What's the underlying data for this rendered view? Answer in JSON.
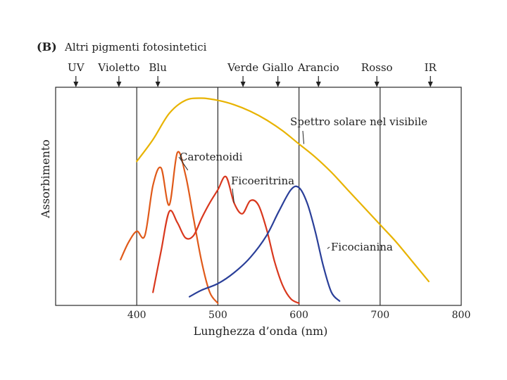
{
  "header": {
    "panel": "(B)",
    "title": "Altri pigmenti fotosintetici"
  },
  "chart_data": {
    "type": "line",
    "xlabel": "Lunghezza d’onda (nm)",
    "ylabel": "Assorbimento",
    "xlim": [
      300,
      800
    ],
    "ylim": [
      0,
      1
    ],
    "x_ticks": [
      "400",
      "500",
      "600",
      "700",
      "800"
    ],
    "gridlines_x": [
      400,
      500,
      600,
      700
    ],
    "color_bands": [
      {
        "label": "UV",
        "x": 325
      },
      {
        "label": "Violetto",
        "x": 378
      },
      {
        "label": "Blu",
        "x": 426
      },
      {
        "label": "Verde",
        "x": 531
      },
      {
        "label": "Giallo",
        "x": 574
      },
      {
        "label": "Arancio",
        "x": 624
      },
      {
        "label": "Rosso",
        "x": 696
      },
      {
        "label": "IR",
        "x": 762
      }
    ],
    "series": [
      {
        "name": "Spettro solare nel visibile",
        "color": "#e8b300",
        "x": [
          400,
          420,
          440,
          460,
          480,
          500,
          520,
          540,
          560,
          580,
          600,
          620,
          640,
          660,
          680,
          700,
          720,
          740,
          760
        ],
        "y": [
          0.66,
          0.76,
          0.88,
          0.94,
          0.95,
          0.94,
          0.92,
          0.89,
          0.85,
          0.8,
          0.74,
          0.68,
          0.61,
          0.53,
          0.45,
          0.37,
          0.29,
          0.2,
          0.11
        ],
        "label_point": [
          606,
          0.74
        ]
      },
      {
        "name": "Carotenoidi",
        "color": "#e05a1a",
        "x": [
          380,
          390,
          400,
          410,
          420,
          430,
          440,
          450,
          460,
          470,
          480,
          490,
          500
        ],
        "y": [
          0.21,
          0.29,
          0.34,
          0.32,
          0.55,
          0.63,
          0.46,
          0.7,
          0.6,
          0.4,
          0.2,
          0.06,
          0.01
        ],
        "label_point": [
          463,
          0.62
        ]
      },
      {
        "name": "Ficoeritrina",
        "color": "#d9381e",
        "x": [
          420,
          430,
          440,
          450,
          460,
          470,
          480,
          490,
          500,
          510,
          520,
          530,
          540,
          550,
          560,
          570,
          580,
          590,
          600
        ],
        "y": [
          0.06,
          0.25,
          0.43,
          0.38,
          0.31,
          0.32,
          0.4,
          0.47,
          0.53,
          0.59,
          0.47,
          0.42,
          0.48,
          0.46,
          0.35,
          0.2,
          0.09,
          0.03,
          0.01
        ],
        "label_point": [
          520,
          0.47
        ]
      },
      {
        "name": "Ficocianina",
        "color": "#2a3f99",
        "x": [
          465,
          480,
          500,
          520,
          540,
          560,
          575,
          590,
          600,
          610,
          620,
          630,
          640,
          650
        ],
        "y": [
          0.04,
          0.07,
          0.1,
          0.15,
          0.22,
          0.32,
          0.43,
          0.53,
          0.54,
          0.47,
          0.34,
          0.18,
          0.06,
          0.02
        ],
        "label_point": [
          635,
          0.26
        ]
      }
    ]
  }
}
